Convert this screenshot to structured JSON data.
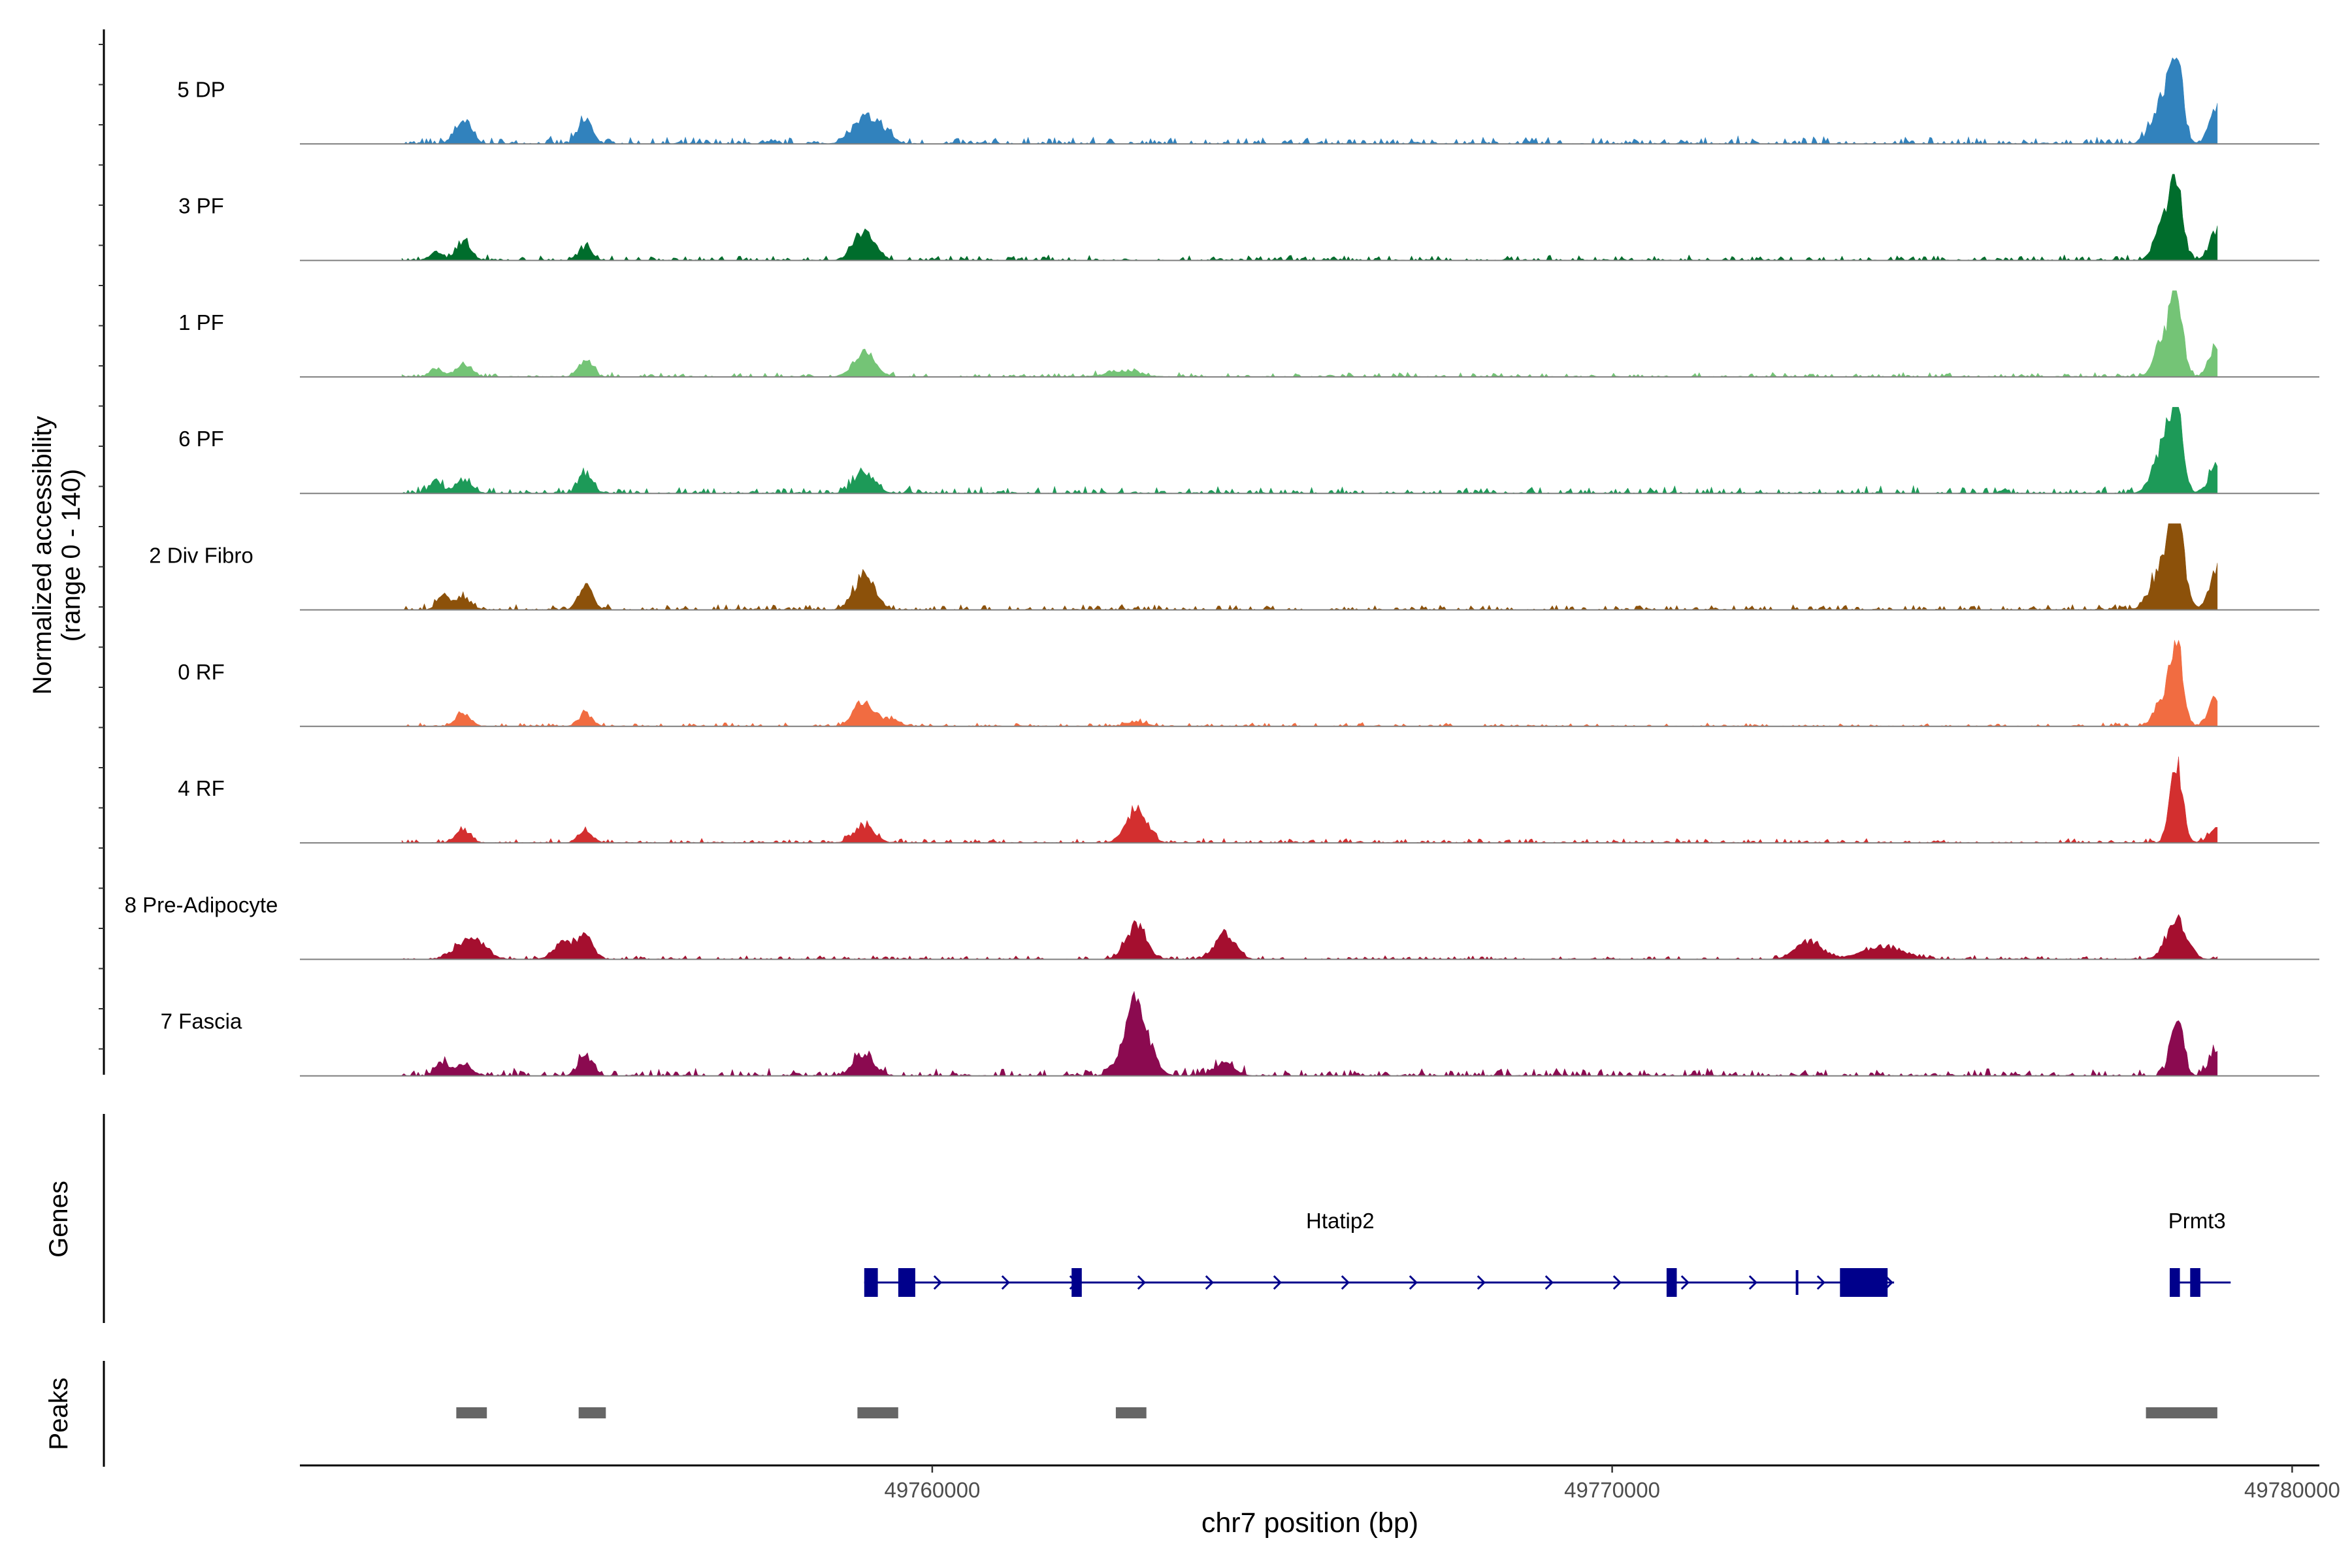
{
  "chart_data": {
    "type": "area",
    "ylabel": "Normalized accessibility",
    "ylabel_range": "(range 0 - 140)",
    "ylim": [
      0,
      140
    ],
    "xlabel": "chr7 position (bp)",
    "xlim": [
      49750700,
      49780400
    ],
    "x_ticks": [
      49760000,
      49770000,
      49780000
    ],
    "x_tick_labels": [
      "49760000",
      "49770000",
      "49780000"
    ],
    "legend": "none",
    "grid": false,
    "tracks": [
      {
        "name": "5 DP",
        "color": "#3182bd",
        "scale": 1.0,
        "noise": 0.08,
        "peaks": [
          [
            49753100,
            120,
            0.27
          ],
          [
            49754900,
            100,
            0.3
          ],
          [
            49759000,
            180,
            0.28
          ],
          [
            49759300,
            120,
            0.12
          ],
          [
            49778300,
            90,
            0.95
          ],
          [
            49778100,
            150,
            0.45
          ],
          [
            49778900,
            110,
            0.4
          ]
        ]
      },
      {
        "name": "3 PF",
        "color": "#006d2c",
        "scale": 1.0,
        "noise": 0.06,
        "peaks": [
          [
            49752700,
            90,
            0.1
          ],
          [
            49753100,
            110,
            0.2
          ],
          [
            49754900,
            100,
            0.15
          ],
          [
            49759000,
            150,
            0.35
          ],
          [
            49778300,
            90,
            0.95
          ],
          [
            49778100,
            120,
            0.4
          ],
          [
            49778900,
            110,
            0.35
          ]
        ]
      },
      {
        "name": "1 PF",
        "color": "#74c476",
        "scale": 1.0,
        "noise": 0.05,
        "peaks": [
          [
            49752700,
            90,
            0.1
          ],
          [
            49753100,
            110,
            0.15
          ],
          [
            49754900,
            100,
            0.2
          ],
          [
            49759000,
            150,
            0.3
          ],
          [
            49762800,
            250,
            0.06
          ],
          [
            49778300,
            90,
            0.95
          ],
          [
            49778100,
            120,
            0.4
          ],
          [
            49778900,
            110,
            0.35
          ]
        ]
      },
      {
        "name": "6 PF",
        "color": "#1d9a58",
        "scale": 1.0,
        "noise": 0.08,
        "peaks": [
          [
            49752700,
            90,
            0.15
          ],
          [
            49753100,
            110,
            0.15
          ],
          [
            49754900,
            100,
            0.25
          ],
          [
            49759000,
            150,
            0.25
          ],
          [
            49778300,
            90,
            0.95
          ],
          [
            49778100,
            140,
            0.55
          ],
          [
            49778900,
            110,
            0.35
          ]
        ]
      },
      {
        "name": "2 Div Fibro",
        "color": "#8c510a",
        "scale": 1.0,
        "noise": 0.06,
        "peaks": [
          [
            49752800,
            90,
            0.15
          ],
          [
            49753100,
            110,
            0.15
          ],
          [
            49754900,
            100,
            0.3
          ],
          [
            49759000,
            150,
            0.4
          ],
          [
            49778300,
            110,
            0.95
          ],
          [
            49778100,
            160,
            0.5
          ],
          [
            49778900,
            110,
            0.45
          ]
        ]
      },
      {
        "name": "0 RF",
        "color": "#f16c41",
        "scale": 1.0,
        "noise": 0.04,
        "peaks": [
          [
            49753100,
            110,
            0.15
          ],
          [
            49754900,
            100,
            0.15
          ],
          [
            49759000,
            150,
            0.3
          ],
          [
            49759400,
            120,
            0.08
          ],
          [
            49763000,
            150,
            0.05
          ],
          [
            49778300,
            90,
            0.95
          ],
          [
            49778100,
            120,
            0.3
          ],
          [
            49778900,
            110,
            0.35
          ]
        ]
      },
      {
        "name": "4 RF",
        "color": "#d32f2f",
        "scale": 1.0,
        "noise": 0.05,
        "peaks": [
          [
            49753100,
            110,
            0.15
          ],
          [
            49754900,
            100,
            0.15
          ],
          [
            49759000,
            150,
            0.2
          ],
          [
            49763000,
            150,
            0.4
          ],
          [
            49778300,
            90,
            0.95
          ],
          [
            49778900,
            110,
            0.2
          ]
        ]
      },
      {
        "name": "8 Pre-Adipocyte",
        "color": "#a50f2f",
        "scale": 1.0,
        "noise": 0.04,
        "peaks": [
          [
            49753200,
            200,
            0.25
          ],
          [
            49754600,
            150,
            0.2
          ],
          [
            49754900,
            100,
            0.3
          ],
          [
            49763000,
            150,
            0.4
          ],
          [
            49764300,
            150,
            0.3
          ],
          [
            49772900,
            200,
            0.2
          ],
          [
            49774000,
            300,
            0.15
          ],
          [
            49778300,
            150,
            0.45
          ]
        ]
      },
      {
        "name": "7 Fascia",
        "color": "#8b0a50",
        "scale": 1.0,
        "noise": 0.08,
        "peaks": [
          [
            49752800,
            90,
            0.15
          ],
          [
            49753100,
            110,
            0.15
          ],
          [
            49754900,
            100,
            0.25
          ],
          [
            49759000,
            150,
            0.25
          ],
          [
            49763000,
            180,
            0.8
          ],
          [
            49764300,
            150,
            0.15
          ],
          [
            49778300,
            90,
            0.7
          ],
          [
            49778900,
            110,
            0.3
          ]
        ]
      }
    ],
    "genes": {
      "panel_label": "Genes",
      "strand_arrow": "›",
      "items": [
        {
          "name": "Htatip2",
          "start": 49759000,
          "end": 49774050,
          "exons": [
            [
              49759000,
              49759200,
              "thick"
            ],
            [
              49759500,
              49759750,
              "thick"
            ],
            [
              49762050,
              49762200,
              "thick"
            ],
            [
              49770800,
              49770950,
              "thick"
            ],
            [
              49772700,
              49772750,
              "thin"
            ],
            [
              49773350,
              49774050,
              "thick"
            ]
          ]
        },
        {
          "name": "Prmt3",
          "start": 49778200,
          "end": 49779000,
          "exons": [
            [
              49778200,
              49778350,
              "thick"
            ],
            [
              49778500,
              49778650,
              "thick"
            ]
          ]
        }
      ]
    },
    "peaks": {
      "panel_label": "Peaks",
      "color": "#666666",
      "regions": [
        [
          49753000,
          49753450
        ],
        [
          49754800,
          49755200
        ],
        [
          49758900,
          49759500
        ],
        [
          49762700,
          49763150
        ],
        [
          49777850,
          49778900
        ]
      ]
    }
  },
  "colors": {
    "gene_model": "#00008b",
    "baseline": "#7f7f7f",
    "axis": "#000000"
  }
}
